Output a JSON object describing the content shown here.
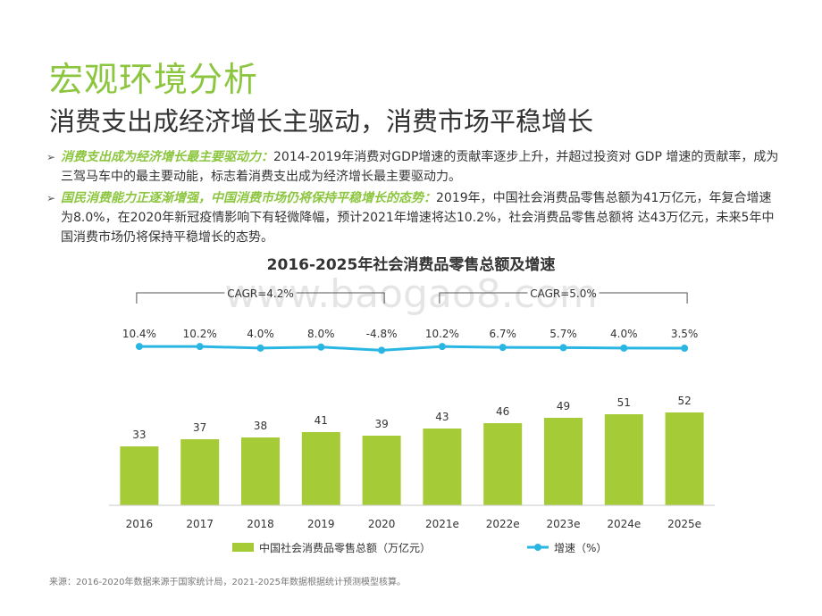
{
  "header": {
    "title": "宏观环境分析",
    "subtitle": "消费支出成经济增长主驱动，消费市场平稳增长"
  },
  "bullets": [
    {
      "marker": "➢",
      "bold": "消费支出成为经济增长最主要驱动力：",
      "text": "2014-2019年消费对GDP增速的贡献率逐步上升，并超过投资对 GDP 增速的贡献率，成为三驾马车中的最主要动能，标志着消费支出成为经济增长最主要驱动力。"
    },
    {
      "marker": "➢",
      "bold": "国民消费能力正逐渐增强，中国消费市场仍将保持平稳增长的态势：",
      "text": "2019年，中国社会消费品零售总额为41万亿元，年复合增速为8.0%，在2020年新冠疫情影响下有轻微降幅，预计2021年增速将达10.2%，社会消费品零售总额将 达43万亿元，未来5年中国消费市场仍将保持平稳增长的态势。"
    }
  ],
  "watermark": "www.baogao8.com",
  "source": "来源：2016-2020年数据来源于国家统计局，2021-2025年数据根据统计预测模型核算。",
  "colors": {
    "accent": "#8cc63f",
    "bar": "#a5cc36",
    "line": "#29b6e3",
    "text": "#333333"
  },
  "chart_data": {
    "type": "bar",
    "title": "2016-2025年社会消费品零售总额及增速",
    "categories": [
      "2016",
      "2017",
      "2018",
      "2019",
      "2020",
      "2021e",
      "2022e",
      "2023e",
      "2024e",
      "2025e"
    ],
    "series": [
      {
        "name": "中国社会消费品零售总额（万亿元）",
        "type": "bar",
        "values": [
          33,
          37,
          38,
          41,
          39,
          43,
          46,
          49,
          51,
          52
        ],
        "labels": [
          "33",
          "37",
          "38",
          "41",
          "39",
          "43",
          "46",
          "49",
          "51",
          "52"
        ]
      },
      {
        "name": "增速（%）",
        "type": "line",
        "values": [
          10.4,
          10.2,
          4.0,
          8.0,
          -4.8,
          10.2,
          6.7,
          5.7,
          4.0,
          3.5
        ],
        "labels": [
          "10.4%",
          "10.2%",
          "4.0%",
          "8.0%",
          "-4.8%",
          "10.2%",
          "6.7%",
          "5.7%",
          "4.0%",
          "3.5%"
        ]
      }
    ],
    "annotations": [
      {
        "text": "CAGR=4.2%",
        "from": "2016",
        "to": "2020"
      },
      {
        "text": "CAGR=5.0%",
        "from": "2021e",
        "to": "2025e"
      }
    ],
    "legend": "bottom"
  }
}
